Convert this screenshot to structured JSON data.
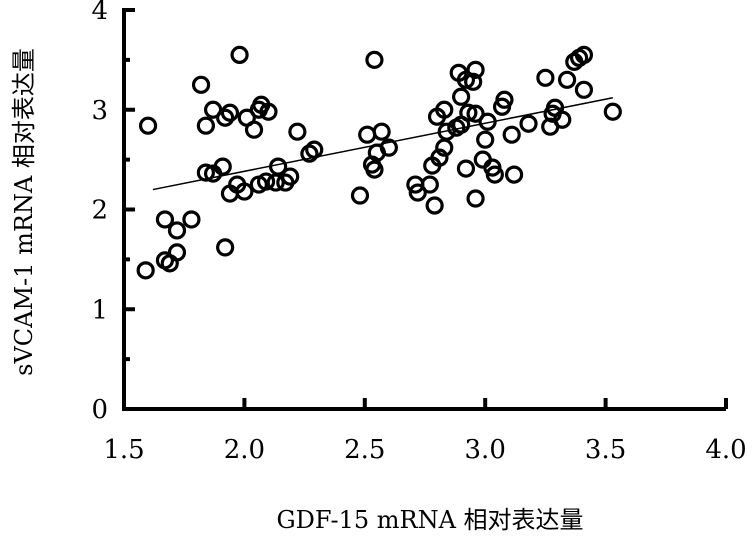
{
  "chart_data": {
    "type": "scatter",
    "xlabel": "GDF-15 mRNA 相对表达量",
    "ylabel": "sVCAM-1 mRNA 相对表达量",
    "xlim": [
      1.5,
      4.0
    ],
    "ylim": [
      0,
      4
    ],
    "x_ticks": [
      "1.5",
      "2.0",
      "2.5",
      "3.0",
      "3.5",
      "4.0"
    ],
    "y_ticks": [
      "0",
      "1",
      "2",
      "3",
      "4"
    ],
    "grid": false,
    "trendline": {
      "x": [
        1.62,
        3.53
      ],
      "y": [
        2.2,
        3.12
      ]
    },
    "points": [
      [
        1.59,
        1.39
      ],
      [
        1.67,
        1.49
      ],
      [
        1.69,
        1.46
      ],
      [
        1.72,
        1.57
      ],
      [
        1.67,
        1.9
      ],
      [
        1.72,
        1.79
      ],
      [
        1.78,
        1.9
      ],
      [
        1.6,
        2.84
      ],
      [
        1.82,
        3.25
      ],
      [
        1.84,
        2.84
      ],
      [
        1.87,
        3.0
      ],
      [
        1.92,
        2.92
      ],
      [
        1.94,
        2.97
      ],
      [
        1.98,
        3.55
      ],
      [
        2.01,
        2.92
      ],
      [
        2.04,
        2.8
      ],
      [
        2.06,
        3.0
      ],
      [
        2.07,
        3.05
      ],
      [
        2.1,
        2.98
      ],
      [
        2.22,
        2.78
      ],
      [
        1.84,
        2.37
      ],
      [
        1.87,
        2.36
      ],
      [
        1.91,
        2.43
      ],
      [
        1.94,
        2.16
      ],
      [
        1.97,
        2.25
      ],
      [
        2.0,
        2.18
      ],
      [
        2.06,
        2.25
      ],
      [
        2.09,
        2.28
      ],
      [
        2.13,
        2.27
      ],
      [
        2.17,
        2.27
      ],
      [
        2.14,
        2.43
      ],
      [
        2.19,
        2.33
      ],
      [
        2.27,
        2.56
      ],
      [
        2.29,
        2.6
      ],
      [
        1.92,
        1.62
      ],
      [
        2.48,
        2.14
      ],
      [
        2.51,
        2.75
      ],
      [
        2.53,
        2.45
      ],
      [
        2.54,
        2.4
      ],
      [
        2.55,
        2.57
      ],
      [
        2.57,
        2.78
      ],
      [
        2.6,
        2.62
      ],
      [
        2.54,
        3.5
      ],
      [
        2.71,
        2.25
      ],
      [
        2.72,
        2.17
      ],
      [
        2.77,
        2.25
      ],
      [
        2.79,
        2.04
      ],
      [
        2.78,
        2.44
      ],
      [
        2.81,
        2.52
      ],
      [
        2.8,
        2.93
      ],
      [
        2.83,
        3.0
      ],
      [
        2.84,
        2.78
      ],
      [
        2.83,
        2.62
      ],
      [
        2.88,
        2.82
      ],
      [
        2.9,
        2.85
      ],
      [
        2.9,
        3.13
      ],
      [
        2.89,
        3.37
      ],
      [
        2.92,
        3.3
      ],
      [
        2.95,
        3.28
      ],
      [
        2.96,
        3.4
      ],
      [
        2.93,
        2.97
      ],
      [
        2.96,
        2.96
      ],
      [
        2.92,
        2.41
      ],
      [
        2.96,
        2.11
      ],
      [
        2.99,
        2.5
      ],
      [
        3.0,
        2.7
      ],
      [
        3.01,
        2.88
      ],
      [
        3.03,
        2.42
      ],
      [
        3.04,
        2.35
      ],
      [
        3.07,
        3.03
      ],
      [
        3.08,
        3.1
      ],
      [
        3.11,
        2.75
      ],
      [
        3.12,
        2.35
      ],
      [
        3.18,
        2.86
      ],
      [
        3.25,
        3.32
      ],
      [
        3.27,
        2.83
      ],
      [
        3.28,
        2.96
      ],
      [
        3.29,
        3.02
      ],
      [
        3.32,
        2.9
      ],
      [
        3.34,
        3.3
      ],
      [
        3.37,
        3.48
      ],
      [
        3.39,
        3.52
      ],
      [
        3.41,
        3.55
      ],
      [
        3.41,
        3.2
      ],
      [
        3.53,
        2.98
      ]
    ]
  }
}
